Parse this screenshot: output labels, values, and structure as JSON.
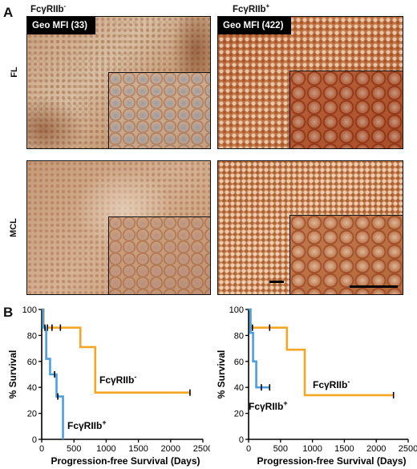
{
  "figure": {
    "panel_a_letter": "A",
    "panel_b_letter": "B",
    "columns": [
      {
        "label_main": "FcγRIIb",
        "label_sup": "-"
      },
      {
        "label_main": "FcγRIIb",
        "label_sup": "+"
      }
    ],
    "rows": [
      "FL",
      "MCL"
    ],
    "mfi_labels": {
      "fl_negative": "Geo MFI (33)",
      "fl_positive": "Geo MFI (422)"
    }
  },
  "chart_data": [
    {
      "type": "line",
      "subtype": "kaplan-meier step",
      "xlabel": "Progression-free Survival (Days)",
      "ylabel": "% Survival",
      "xlim": [
        0,
        2500
      ],
      "ylim": [
        0,
        100
      ],
      "xticks": [
        "0",
        "500",
        "1000",
        "1500",
        "2000",
        "2500"
      ],
      "yticks": [
        "0",
        "20",
        "40",
        "60",
        "80",
        "100"
      ],
      "series": [
        {
          "name": "FcγRIIb-",
          "color": "#f5a623",
          "x": [
            0,
            30,
            600,
            600,
            830,
            830,
            2300
          ],
          "y": [
            100,
            86,
            86,
            71,
            71,
            36,
            36
          ],
          "censored_x": [
            90,
            160,
            290,
            2300
          ]
        },
        {
          "name": "FcγRIIb+",
          "color": "#4a9fe0",
          "x": [
            0,
            20,
            20,
            70,
            70,
            130,
            130,
            230,
            230,
            330
          ],
          "y": [
            100,
            100,
            86,
            86,
            62,
            62,
            50,
            50,
            33,
            0
          ],
          "censored_x": [
            50,
            200,
            250
          ]
        }
      ],
      "annotations": [
        {
          "text_main": "FcγRIIb",
          "text_sup": "-"
        },
        {
          "text_main": "FcγRIIb",
          "text_sup": "+"
        }
      ]
    },
    {
      "type": "line",
      "subtype": "kaplan-meier step",
      "xlabel": "Progression-free Survival (Days)",
      "ylabel": "% Survival",
      "xlim": [
        0,
        2500
      ],
      "ylim": [
        0,
        100
      ],
      "xticks": [
        "0",
        "500",
        "1000",
        "1500",
        "2000",
        "2500"
      ],
      "yticks": [
        "0",
        "20",
        "40",
        "60",
        "80",
        "100"
      ],
      "series": [
        {
          "name": "FcγRIIb-",
          "color": "#f5a623",
          "x": [
            0,
            30,
            600,
            600,
            880,
            880,
            2270
          ],
          "y": [
            100,
            86,
            86,
            69,
            69,
            34,
            34
          ],
          "censored_x": [
            60,
            330,
            2270
          ]
        },
        {
          "name": "FcγRIIb+",
          "color": "#4a9fe0",
          "x": [
            0,
            30,
            30,
            70,
            70,
            120,
            120,
            330
          ],
          "y": [
            100,
            100,
            82,
            82,
            60,
            60,
            40,
            40
          ],
          "censored_x": [
            200,
            330
          ]
        }
      ],
      "annotations": [
        {
          "text_main": "FcγRIIb",
          "text_sup": "-"
        },
        {
          "text_main": "FcγRIIb",
          "text_sup": "+"
        }
      ]
    }
  ]
}
